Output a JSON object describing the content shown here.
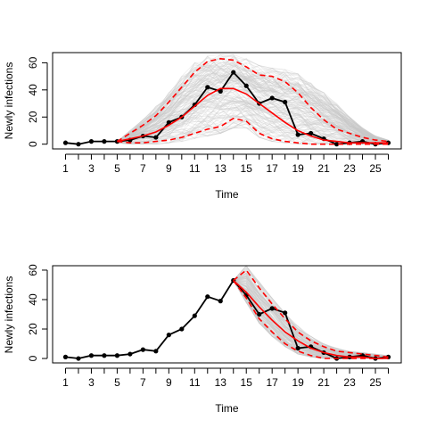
{
  "chart_data": [
    {
      "type": "line",
      "xlabel": "Time",
      "ylabel": "Newly infections",
      "xlim": [
        1,
        26
      ],
      "ylim": [
        0,
        65
      ],
      "x_ticks": [
        1,
        3,
        5,
        7,
        9,
        11,
        13,
        15,
        17,
        19,
        21,
        23,
        25
      ],
      "y_ticks": [
        0,
        20,
        40,
        60
      ],
      "observed": {
        "x": [
          1,
          2,
          3,
          4,
          5,
          6,
          7,
          8,
          9,
          10,
          11,
          12,
          13,
          14,
          15,
          16,
          17,
          18,
          19,
          20,
          21,
          22,
          23,
          24,
          25,
          26
        ],
        "y": [
          1,
          0,
          2,
          2,
          2,
          3,
          6,
          5,
          16,
          20,
          29,
          42,
          39,
          53,
          43,
          30,
          34,
          31,
          7,
          8,
          4,
          0,
          1,
          2,
          0,
          1
        ]
      },
      "mean_fit": {
        "x": [
          5,
          6,
          7,
          8,
          9,
          10,
          11,
          12,
          13,
          14,
          15,
          16,
          17,
          18,
          19,
          20,
          21,
          22,
          23,
          24,
          25,
          26
        ],
        "y": [
          2,
          4,
          6,
          9,
          14,
          20,
          28,
          36,
          41,
          41,
          37,
          30,
          23,
          16,
          10,
          6,
          3,
          2,
          1,
          1,
          1,
          1
        ]
      },
      "upper_band": {
        "x": [
          5,
          6,
          7,
          8,
          9,
          10,
          11,
          12,
          13,
          14,
          15,
          16,
          17,
          18,
          19,
          20,
          21,
          22,
          23,
          24,
          25,
          26
        ],
        "y": [
          2,
          8,
          14,
          21,
          31,
          42,
          53,
          61,
          63,
          62,
          57,
          51,
          50,
          46,
          38,
          27,
          18,
          11,
          8,
          5,
          3,
          2
        ]
      },
      "lower_band": {
        "x": [
          5,
          6,
          7,
          8,
          9,
          10,
          11,
          12,
          13,
          14,
          15,
          16,
          17,
          18,
          19,
          20,
          21,
          22,
          23,
          24,
          25,
          26
        ],
        "y": [
          2,
          1,
          1,
          2,
          3,
          5,
          8,
          11,
          13,
          19,
          17,
          8,
          4,
          2,
          1,
          0,
          0,
          0,
          0,
          0,
          0,
          0
        ]
      },
      "simulation_envelope_upper": [
        2,
        10,
        18,
        28,
        38,
        50,
        60,
        65,
        66,
        66,
        63,
        58,
        56,
        55,
        52,
        45,
        38,
        30,
        20,
        12,
        6,
        3
      ],
      "simulation_envelope_lower": [
        1,
        0,
        0,
        0,
        1,
        2,
        4,
        6,
        8,
        12,
        12,
        5,
        2,
        1,
        0,
        0,
        0,
        0,
        0,
        0,
        0,
        0
      ],
      "colors": {
        "observed": "#000000",
        "mean": "#ff0000",
        "band": "#ff0000",
        "sims": "#c8c8c8"
      }
    },
    {
      "type": "line",
      "xlabel": "Time",
      "ylabel": "Newly infections",
      "xlim": [
        1,
        26
      ],
      "ylim": [
        0,
        60
      ],
      "x_ticks": [
        1,
        3,
        5,
        7,
        9,
        11,
        13,
        15,
        17,
        19,
        21,
        23,
        25
      ],
      "y_ticks": [
        0,
        20,
        40,
        60
      ],
      "observed": {
        "x": [
          1,
          2,
          3,
          4,
          5,
          6,
          7,
          8,
          9,
          10,
          11,
          12,
          13,
          14,
          15,
          16,
          17,
          18,
          19,
          20,
          21,
          22,
          23,
          24,
          25,
          26
        ],
        "y": [
          1,
          0,
          2,
          2,
          2,
          3,
          6,
          5,
          16,
          20,
          29,
          42,
          39,
          53,
          43,
          30,
          34,
          31,
          7,
          8,
          4,
          0,
          1,
          2,
          0,
          1
        ]
      },
      "mean_fit": {
        "x": [
          14,
          15,
          16,
          17,
          18,
          19,
          20,
          21,
          22,
          23,
          24,
          25,
          26
        ],
        "y": [
          53,
          45,
          35,
          26,
          18,
          12,
          7,
          4,
          2,
          1,
          1,
          0,
          0
        ]
      },
      "upper_band": {
        "x": [
          14,
          15,
          16,
          17,
          18,
          19,
          20,
          21,
          22,
          23,
          24,
          25,
          26
        ],
        "y": [
          53,
          60,
          48,
          37,
          27,
          18,
          12,
          8,
          5,
          4,
          3,
          2,
          1
        ]
      },
      "lower_band": {
        "x": [
          14,
          15,
          16,
          17,
          18,
          19,
          20,
          21,
          22,
          23,
          24,
          25,
          26
        ],
        "y": [
          53,
          41,
          27,
          18,
          10,
          5,
          2,
          0,
          0,
          0,
          0,
          0,
          0
        ]
      },
      "simulation_envelope_upper": [
        53,
        63,
        52,
        41,
        31,
        22,
        15,
        10,
        7,
        5,
        4,
        3,
        2
      ],
      "simulation_envelope_lower": [
        53,
        38,
        24,
        15,
        8,
        3,
        1,
        0,
        0,
        0,
        0,
        0,
        0
      ],
      "colors": {
        "observed": "#000000",
        "mean": "#ff0000",
        "band": "#ff0000",
        "sims": "#c8c8c8"
      }
    }
  ]
}
